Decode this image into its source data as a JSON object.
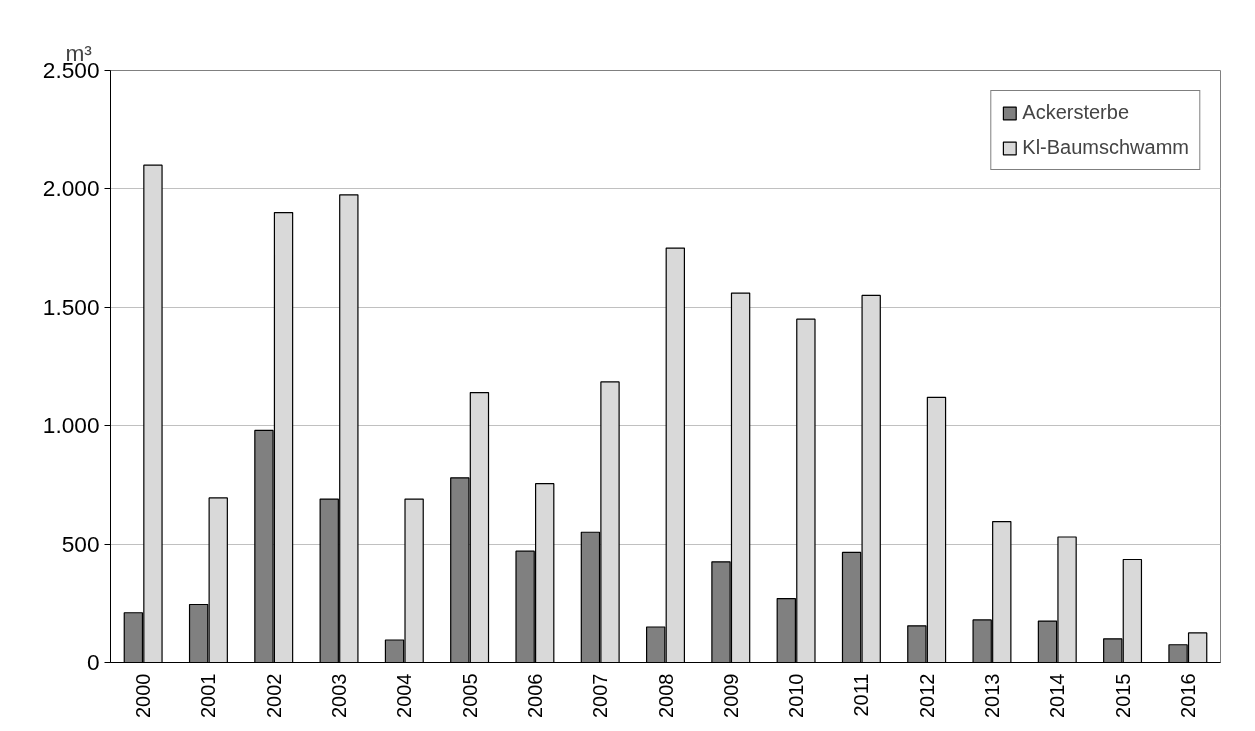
{
  "chart_data": {
    "type": "bar",
    "ylabel": "m³",
    "categories": [
      "2000",
      "2001",
      "2002",
      "2003",
      "2004",
      "2005",
      "2006",
      "2007",
      "2008",
      "2009",
      "2010",
      "2011",
      "2012",
      "2013",
      "2014",
      "2015",
      "2016"
    ],
    "series": [
      {
        "name": "Ackersterbe",
        "color": "#808080",
        "values": [
          210,
          245,
          980,
          690,
          95,
          780,
          470,
          550,
          150,
          425,
          270,
          465,
          155,
          180,
          175,
          100,
          75
        ]
      },
      {
        "name": "Kl-Baumschwamm",
        "color": "#d9d9d9",
        "values": [
          2100,
          695,
          1900,
          1975,
          690,
          1140,
          755,
          1185,
          1750,
          1560,
          1450,
          1550,
          1120,
          595,
          530,
          435,
          125
        ]
      }
    ],
    "ylim": [
      0,
      2500
    ],
    "yticks": [
      {
        "value": 0,
        "label": "0"
      },
      {
        "value": 500,
        "label": "500"
      },
      {
        "value": 1000,
        "label": "1.000"
      },
      {
        "value": 1500,
        "label": "1.500"
      },
      {
        "value": 2000,
        "label": "2.000"
      },
      {
        "value": 2500,
        "label": "2.500"
      }
    ],
    "grid": "y",
    "legend": "top right"
  }
}
